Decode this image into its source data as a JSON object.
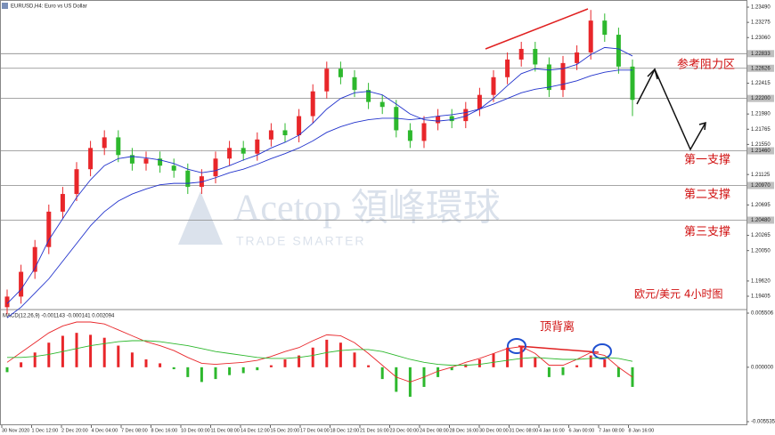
{
  "chart_data": [
    {
      "type": "candlestick",
      "title": "EURUSD,H4: Euro vs US Dollar",
      "open": [
        1.1925,
        1.194,
        1.1975,
        1.201,
        1.206,
        1.2085,
        1.212,
        1.215,
        1.2165,
        1.214,
        1.2128,
        1.2135,
        1.2125,
        1.2118,
        1.2095,
        1.211,
        1.2135,
        1.215,
        1.2142,
        1.2162,
        1.2175,
        1.2168,
        1.2195,
        1.223,
        1.2262,
        1.225,
        1.2232,
        1.2215,
        1.2208,
        1.2175,
        1.216,
        1.2185,
        1.2195,
        1.2188,
        1.2205,
        1.2225,
        1.225,
        1.2275,
        1.229,
        1.2268,
        1.2232,
        1.227,
        1.2285,
        1.233,
        1.231,
        1.2265
      ],
      "high": [
        1.195,
        1.1985,
        1.202,
        1.207,
        1.2095,
        1.213,
        1.216,
        1.2175,
        1.2175,
        1.215,
        1.2145,
        1.2145,
        1.2135,
        1.2128,
        1.212,
        1.2145,
        1.216,
        1.216,
        1.2172,
        1.2185,
        1.2185,
        1.2205,
        1.224,
        1.2272,
        1.2272,
        1.226,
        1.2242,
        1.2225,
        1.2218,
        1.2185,
        1.2195,
        1.2205,
        1.2205,
        1.2215,
        1.2235,
        1.226,
        1.2285,
        1.23,
        1.23,
        1.2278,
        1.228,
        1.2295,
        1.2345,
        1.234,
        1.232,
        1.2275
      ],
      "low": [
        1.1915,
        1.193,
        1.1965,
        1.2,
        1.205,
        1.2075,
        1.211,
        1.214,
        1.213,
        1.2118,
        1.2118,
        1.2115,
        1.2108,
        1.2085,
        1.2085,
        1.21,
        1.2125,
        1.2132,
        1.2132,
        1.2152,
        1.2158,
        1.2158,
        1.2185,
        1.222,
        1.224,
        1.2222,
        1.2205,
        1.2198,
        1.2165,
        1.215,
        1.215,
        1.2175,
        1.2178,
        1.2178,
        1.2195,
        1.2215,
        1.224,
        1.2265,
        1.2258,
        1.2222,
        1.2222,
        1.226,
        1.2275,
        1.23,
        1.2255,
        1.2195
      ],
      "close": [
        1.194,
        1.1975,
        1.201,
        1.206,
        1.2085,
        1.212,
        1.215,
        1.2165,
        1.214,
        1.2128,
        1.2135,
        1.2125,
        1.2118,
        1.2095,
        1.211,
        1.2135,
        1.215,
        1.2142,
        1.2162,
        1.2175,
        1.2168,
        1.2195,
        1.223,
        1.2262,
        1.225,
        1.2232,
        1.2215,
        1.2208,
        1.2175,
        1.216,
        1.2185,
        1.2195,
        1.2188,
        1.2205,
        1.2225,
        1.225,
        1.2275,
        1.229,
        1.2268,
        1.2232,
        1.227,
        1.2285,
        1.233,
        1.231,
        1.2265,
        1.2218
      ],
      "up_color": "#e8262a",
      "down_color": "#2db82d",
      "series": [
        {
          "color": "#2233cc",
          "values": [
            1.193,
            1.195,
            1.198,
            1.202,
            1.205,
            1.208,
            1.2105,
            1.2125,
            1.2135,
            1.2138,
            1.2136,
            1.2133,
            1.2128,
            1.212,
            1.2115,
            1.2118,
            1.2125,
            1.2133,
            1.214,
            1.215,
            1.2158,
            1.2168,
            1.2185,
            1.2205,
            1.222,
            1.2228,
            1.223,
            1.2225,
            1.2212,
            1.2198,
            1.219,
            1.2188,
            1.219,
            1.2195,
            1.2205,
            1.222,
            1.2238,
            1.2255,
            1.2262,
            1.226,
            1.2262,
            1.2268,
            1.2282,
            1.2292,
            1.229,
            1.228
          ]
        },
        {
          "color": "#2233cc",
          "values": [
            1.191,
            1.1925,
            1.1945,
            1.1965,
            1.199,
            1.2015,
            1.204,
            1.206,
            1.2075,
            1.2085,
            1.2092,
            1.2098,
            1.21,
            1.21,
            1.2102,
            1.2108,
            1.2115,
            1.212,
            1.2127,
            1.2135,
            1.2142,
            1.215,
            1.216,
            1.2172,
            1.218,
            1.2186,
            1.219,
            1.2192,
            1.2192,
            1.219,
            1.2192,
            1.2195,
            1.2197,
            1.22,
            1.2205,
            1.2212,
            1.222,
            1.2228,
            1.2233,
            1.2236,
            1.224,
            1.2245,
            1.2252,
            1.2257,
            1.226,
            1.226
          ]
        }
      ],
      "ylim": [
        1.19229,
        1.23591
      ],
      "yticks": [
        {
          "value": 1.2349,
          "label": "1.23490"
        },
        1.23275,
        {
          "value": 1.2306,
          "label": "1.23060"
        },
        1.22415,
        {
          "value": 1.2198,
          "label": "1.21980"
        },
        1.21765,
        {
          "value": 1.2155,
          "label": "1.21550"
        },
        1.21125,
        1.20695,
        1.20265,
        {
          "value": 1.2005,
          "label": "1.20050"
        },
        {
          "value": 1.1962,
          "label": "1.19620"
        },
        1.19405
      ],
      "levels": [
        1.22833,
        1.22626,
        {
          "value": 1.222,
          "label": "1.22200"
        },
        {
          "value": 1.2146,
          "label": "1.21460"
        },
        {
          "value": 1.2097,
          "label": "1.20970"
        },
        {
          "value": 1.2048,
          "label": "1.20480"
        }
      ],
      "annotations": [
        "参考阻力区",
        "第一支撑",
        "第二支撑",
        "第三支撑",
        "欧元/美元   4小时图"
      ],
      "x_labels": [
        "30 Nov 2020",
        "1 Dec 12:00",
        "2 Dec 20:00",
        "4 Dec 04:00",
        "7 Dec 08:00",
        "8 Dec 16:00",
        "10 Dec 00:00",
        "11 Dec 08:00",
        "14 Dec 12:00",
        "15 Dec 20:00",
        "17 Dec 04:00",
        "18 Dec 12:00",
        "21 Dec 16:00",
        "23 Dec 00:00",
        "24 Dec 08:00",
        "28 Dec 16:00",
        "30 Dec 00:00",
        "31 Dec 08:00",
        "4 Jan 16:00",
        "6 Jan 00:00",
        "7 Jan 08:00",
        "8 Jan 16:00"
      ]
    },
    {
      "type": "macd",
      "title": "MACD(12,26,9) -0.001143 -0.000141 0.002094",
      "annotation": "顶背离",
      "values": [
        -0.0005,
        0.0005,
        0.0015,
        0.0025,
        0.0032,
        0.0035,
        0.0033,
        0.003,
        0.0022,
        0.0015,
        0.0008,
        0.0004,
        -0.0002,
        -0.001,
        -0.0015,
        -0.0012,
        -0.0008,
        -0.0006,
        -0.0003,
        0.0002,
        0.0008,
        0.0012,
        0.002,
        0.0028,
        0.0025,
        0.0015,
        0.0002,
        -0.0012,
        -0.0025,
        -0.003,
        -0.002,
        -0.001,
        -0.0003,
        0.0003,
        0.0008,
        0.0014,
        0.002,
        0.0022,
        0.001,
        -0.001,
        -0.0008,
        0.0002,
        0.0012,
        0.0008,
        -0.001,
        -0.002
      ],
      "up_color": "#e8262a",
      "down_color": "#2db82d",
      "series": [
        {
          "color": "#e8262a",
          "values": [
            0.0005,
            0.0015,
            0.0025,
            0.0035,
            0.0042,
            0.0046,
            0.0046,
            0.0044,
            0.0038,
            0.0032,
            0.0026,
            0.0022,
            0.0017,
            0.001,
            0.0004,
            0.0003,
            0.0004,
            0.0005,
            0.0007,
            0.0011,
            0.0016,
            0.002,
            0.0027,
            0.0033,
            0.0032,
            0.0025,
            0.0014,
            0.0002,
            -0.001,
            -0.0015,
            -0.001,
            -0.0004,
            0.0,
            0.0005,
            0.0009,
            0.0014,
            0.0019,
            0.0021,
            0.0014,
            0.0002,
            0.0002,
            0.0008,
            0.0015,
            0.0012,
            0.0,
            -0.001
          ]
        },
        {
          "color": "#2db82d",
          "values": [
            0.001,
            0.001,
            0.0011,
            0.0013,
            0.0016,
            0.0019,
            0.0022,
            0.0024,
            0.0026,
            0.0027,
            0.0027,
            0.0026,
            0.0024,
            0.0022,
            0.0019,
            0.0016,
            0.0014,
            0.0012,
            0.001,
            0.0009,
            0.0009,
            0.001,
            0.0012,
            0.0015,
            0.0017,
            0.0018,
            0.0018,
            0.0016,
            0.0012,
            0.0008,
            0.0005,
            0.0003,
            0.0002,
            0.0002,
            0.0003,
            0.0005,
            0.0007,
            0.0009,
            0.001,
            0.0009,
            0.0008,
            0.0008,
            0.0009,
            0.001,
            0.0009,
            0.0006
          ]
        }
      ],
      "ylim": [
        -0.005897,
        0.005687
      ],
      "yticks": [
        0.005506,
        {
          "value": 0,
          "label": "0.000000"
        },
        -0.005535
      ]
    }
  ],
  "watermark": {
    "brand": "Acetop 領峰環球",
    "slogan": "TRADE SMARTER"
  }
}
